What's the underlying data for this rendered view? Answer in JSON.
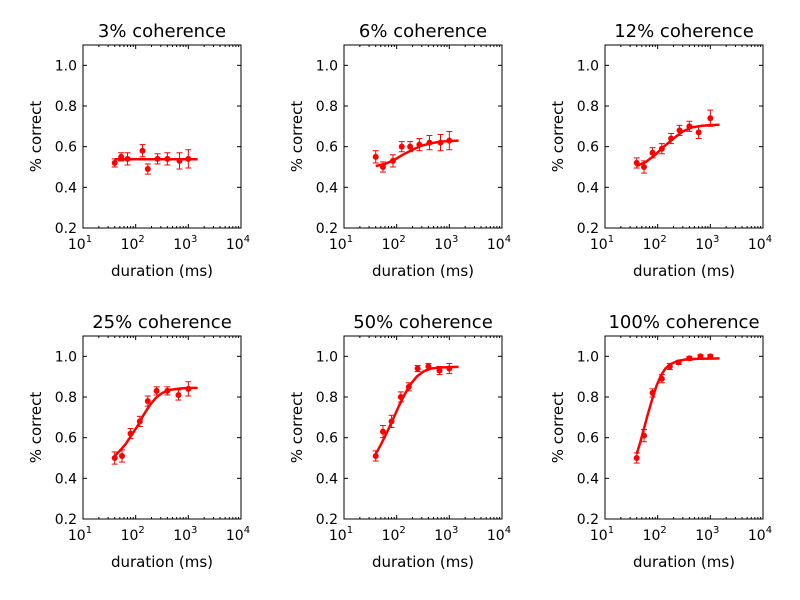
{
  "chart_data": [
    {
      "type": "scatter",
      "title": "3% coherence",
      "xlabel": "duration (ms)",
      "ylabel": "% correct",
      "xscale": "log",
      "xlim": [
        10,
        10000
      ],
      "ylim": [
        0.2,
        1.1
      ],
      "xticks": [
        {
          "base": "10",
          "exp": "1"
        },
        {
          "base": "10",
          "exp": "2"
        },
        {
          "base": "10",
          "exp": "3"
        },
        {
          "base": "10",
          "exp": "4"
        }
      ],
      "yticks": [
        "0.2",
        "0.4",
        "0.6",
        "0.8",
        "1.0"
      ],
      "series": [
        {
          "points": [
            {
              "x": 40,
              "y": 0.52,
              "err": 0.02
            },
            {
              "x": 53,
              "y": 0.55,
              "err": 0.02
            },
            {
              "x": 70,
              "y": 0.54,
              "err": 0.03
            },
            {
              "x": 135,
              "y": 0.58,
              "err": 0.03
            },
            {
              "x": 170,
              "y": 0.49,
              "err": 0.025
            },
            {
              "x": 260,
              "y": 0.54,
              "err": 0.025
            },
            {
              "x": 400,
              "y": 0.54,
              "err": 0.03
            },
            {
              "x": 680,
              "y": 0.53,
              "err": 0.04
            },
            {
              "x": 1000,
              "y": 0.54,
              "err": 0.045
            }
          ],
          "fit": [
            [
              40,
              0.538
            ],
            [
              1500,
              0.538
            ]
          ]
        }
      ]
    },
    {
      "type": "scatter",
      "title": "6% coherence",
      "xlabel": "duration (ms)",
      "ylabel": "% correct",
      "xscale": "log",
      "xlim": [
        10,
        10000
      ],
      "ylim": [
        0.2,
        1.1
      ],
      "xticks": [
        {
          "base": "10",
          "exp": "1"
        },
        {
          "base": "10",
          "exp": "2"
        },
        {
          "base": "10",
          "exp": "3"
        },
        {
          "base": "10",
          "exp": "4"
        }
      ],
      "yticks": [
        "0.2",
        "0.4",
        "0.6",
        "0.8",
        "1.0"
      ],
      "series": [
        {
          "points": [
            {
              "x": 40,
              "y": 0.55,
              "err": 0.03
            },
            {
              "x": 55,
              "y": 0.5,
              "err": 0.025
            },
            {
              "x": 85,
              "y": 0.53,
              "err": 0.03
            },
            {
              "x": 125,
              "y": 0.6,
              "err": 0.025
            },
            {
              "x": 180,
              "y": 0.6,
              "err": 0.025
            },
            {
              "x": 270,
              "y": 0.61,
              "err": 0.03
            },
            {
              "x": 420,
              "y": 0.62,
              "err": 0.035
            },
            {
              "x": 680,
              "y": 0.62,
              "err": 0.04
            },
            {
              "x": 1000,
              "y": 0.63,
              "err": 0.045
            }
          ],
          "fit": [
            [
              40,
              0.505
            ],
            [
              60,
              0.515
            ],
            [
              90,
              0.535
            ],
            [
              130,
              0.56
            ],
            [
              200,
              0.585
            ],
            [
              300,
              0.605
            ],
            [
              450,
              0.617
            ],
            [
              700,
              0.625
            ],
            [
              1000,
              0.628
            ],
            [
              1500,
              0.63
            ]
          ]
        }
      ]
    },
    {
      "type": "scatter",
      "title": "12% coherence",
      "xlabel": "duration (ms)",
      "ylabel": "% correct",
      "xscale": "log",
      "xlim": [
        10,
        10000
      ],
      "ylim": [
        0.2,
        1.1
      ],
      "xticks": [
        {
          "base": "10",
          "exp": "1"
        },
        {
          "base": "10",
          "exp": "2"
        },
        {
          "base": "10",
          "exp": "3"
        },
        {
          "base": "10",
          "exp": "4"
        }
      ],
      "yticks": [
        "0.2",
        "0.4",
        "0.6",
        "0.8",
        "1.0"
      ],
      "series": [
        {
          "points": [
            {
              "x": 40,
              "y": 0.52,
              "err": 0.025
            },
            {
              "x": 55,
              "y": 0.5,
              "err": 0.03
            },
            {
              "x": 80,
              "y": 0.57,
              "err": 0.025
            },
            {
              "x": 120,
              "y": 0.59,
              "err": 0.025
            },
            {
              "x": 180,
              "y": 0.64,
              "err": 0.025
            },
            {
              "x": 260,
              "y": 0.68,
              "err": 0.025
            },
            {
              "x": 400,
              "y": 0.7,
              "err": 0.025
            },
            {
              "x": 600,
              "y": 0.67,
              "err": 0.03
            },
            {
              "x": 1000,
              "y": 0.74,
              "err": 0.04
            }
          ],
          "fit": [
            [
              40,
              0.505
            ],
            [
              60,
              0.525
            ],
            [
              90,
              0.56
            ],
            [
              130,
              0.6
            ],
            [
              200,
              0.64
            ],
            [
              300,
              0.675
            ],
            [
              450,
              0.695
            ],
            [
              700,
              0.703
            ],
            [
              1000,
              0.706
            ],
            [
              1500,
              0.708
            ]
          ]
        }
      ]
    },
    {
      "type": "scatter",
      "title": "25% coherence",
      "xlabel": "duration (ms)",
      "ylabel": "% correct",
      "xscale": "log",
      "xlim": [
        10,
        10000
      ],
      "ylim": [
        0.2,
        1.1
      ],
      "xticks": [
        {
          "base": "10",
          "exp": "1"
        },
        {
          "base": "10",
          "exp": "2"
        },
        {
          "base": "10",
          "exp": "3"
        },
        {
          "base": "10",
          "exp": "4"
        }
      ],
      "yticks": [
        "0.2",
        "0.4",
        "0.6",
        "0.8",
        "1.0"
      ],
      "series": [
        {
          "points": [
            {
              "x": 40,
              "y": 0.5,
              "err": 0.03
            },
            {
              "x": 55,
              "y": 0.51,
              "err": 0.03
            },
            {
              "x": 80,
              "y": 0.62,
              "err": 0.025
            },
            {
              "x": 120,
              "y": 0.68,
              "err": 0.025
            },
            {
              "x": 170,
              "y": 0.78,
              "err": 0.025
            },
            {
              "x": 250,
              "y": 0.83,
              "err": 0.02
            },
            {
              "x": 400,
              "y": 0.83,
              "err": 0.02
            },
            {
              "x": 650,
              "y": 0.81,
              "err": 0.025
            },
            {
              "x": 1000,
              "y": 0.84,
              "err": 0.035
            }
          ],
          "fit": [
            [
              40,
              0.51
            ],
            [
              50,
              0.535
            ],
            [
              65,
              0.57
            ],
            [
              85,
              0.615
            ],
            [
              110,
              0.66
            ],
            [
              140,
              0.71
            ],
            [
              180,
              0.755
            ],
            [
              240,
              0.795
            ],
            [
              320,
              0.82
            ],
            [
              450,
              0.835
            ],
            [
              700,
              0.842
            ],
            [
              1000,
              0.845
            ],
            [
              1500,
              0.845
            ]
          ]
        }
      ]
    },
    {
      "type": "scatter",
      "title": "50% coherence",
      "xlabel": "duration (ms)",
      "ylabel": "% correct",
      "xscale": "log",
      "xlim": [
        10,
        10000
      ],
      "ylim": [
        0.2,
        1.1
      ],
      "xticks": [
        {
          "base": "10",
          "exp": "1"
        },
        {
          "base": "10",
          "exp": "2"
        },
        {
          "base": "10",
          "exp": "3"
        },
        {
          "base": "10",
          "exp": "4"
        }
      ],
      "yticks": [
        "0.2",
        "0.4",
        "0.6",
        "0.8",
        "1.0"
      ],
      "series": [
        {
          "points": [
            {
              "x": 40,
              "y": 0.51,
              "err": 0.025
            },
            {
              "x": 55,
              "y": 0.63,
              "err": 0.03
            },
            {
              "x": 80,
              "y": 0.68,
              "err": 0.03
            },
            {
              "x": 120,
              "y": 0.8,
              "err": 0.025
            },
            {
              "x": 170,
              "y": 0.85,
              "err": 0.02
            },
            {
              "x": 250,
              "y": 0.94,
              "err": 0.015
            },
            {
              "x": 400,
              "y": 0.95,
              "err": 0.015
            },
            {
              "x": 650,
              "y": 0.93,
              "err": 0.02
            },
            {
              "x": 1000,
              "y": 0.94,
              "err": 0.025
            }
          ],
          "fit": [
            [
              40,
              0.52
            ],
            [
              50,
              0.565
            ],
            [
              65,
              0.625
            ],
            [
              85,
              0.69
            ],
            [
              110,
              0.755
            ],
            [
              140,
              0.81
            ],
            [
              180,
              0.86
            ],
            [
              240,
              0.9
            ],
            [
              320,
              0.925
            ],
            [
              450,
              0.94
            ],
            [
              700,
              0.945
            ],
            [
              1000,
              0.947
            ],
            [
              1500,
              0.948
            ]
          ]
        }
      ]
    },
    {
      "type": "scatter",
      "title": "100% coherence",
      "xlabel": "duration (ms)",
      "ylabel": "% correct",
      "xscale": "log",
      "xlim": [
        10,
        10000
      ],
      "ylim": [
        0.2,
        1.1
      ],
      "xticks": [
        {
          "base": "10",
          "exp": "1"
        },
        {
          "base": "10",
          "exp": "2"
        },
        {
          "base": "10",
          "exp": "3"
        },
        {
          "base": "10",
          "exp": "4"
        }
      ],
      "yticks": [
        "0.2",
        "0.4",
        "0.6",
        "0.8",
        "1.0"
      ],
      "series": [
        {
          "points": [
            {
              "x": 40,
              "y": 0.5,
              "err": 0.025
            },
            {
              "x": 55,
              "y": 0.61,
              "err": 0.03
            },
            {
              "x": 80,
              "y": 0.82,
              "err": 0.02
            },
            {
              "x": 120,
              "y": 0.89,
              "err": 0.02
            },
            {
              "x": 170,
              "y": 0.95,
              "err": 0.015
            },
            {
              "x": 250,
              "y": 0.97,
              "err": 0.01
            },
            {
              "x": 400,
              "y": 0.99,
              "err": 0.01
            },
            {
              "x": 650,
              "y": 1.0,
              "err": 0.008
            },
            {
              "x": 1000,
              "y": 1.0,
              "err": 0.008
            }
          ],
          "fit": [
            [
              40,
              0.52
            ],
            [
              47,
              0.58
            ],
            [
              55,
              0.645
            ],
            [
              65,
              0.715
            ],
            [
              78,
              0.785
            ],
            [
              95,
              0.855
            ],
            [
              115,
              0.905
            ],
            [
              140,
              0.94
            ],
            [
              180,
              0.963
            ],
            [
              240,
              0.977
            ],
            [
              350,
              0.985
            ],
            [
              600,
              0.988
            ],
            [
              1000,
              0.989
            ],
            [
              1500,
              0.99
            ]
          ]
        }
      ]
    }
  ],
  "colors": {
    "data": "#ff0000",
    "axes": "#000000",
    "background": "#ffffff"
  }
}
